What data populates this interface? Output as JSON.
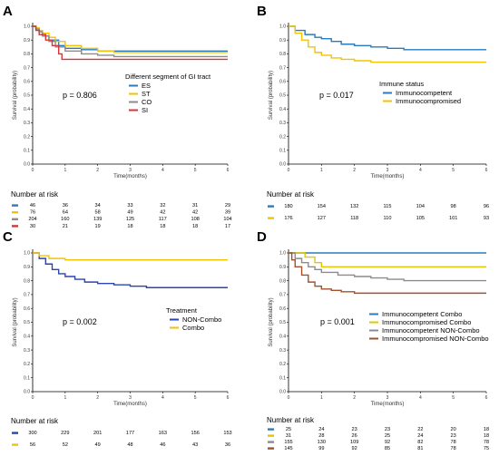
{
  "common": {
    "xlabel": "Time(months)",
    "ylabel": "Survival (probability)",
    "x_ticks": [
      "0",
      "1",
      "2",
      "3",
      "4",
      "5",
      "6"
    ],
    "y_ticks": [
      "0.0",
      "0.1",
      "0.2",
      "0.3",
      "0.4",
      "0.5",
      "0.6",
      "0.7",
      "0.8",
      "0.9",
      "1.0"
    ],
    "risk_title": "Number at risk"
  },
  "chart_data": [
    {
      "type": "line",
      "panel": "A",
      "p_value": "p = 0.806",
      "legend_title": "Different segment of GI tract",
      "xlim": [
        0,
        6
      ],
      "ylim": [
        0,
        1
      ],
      "series": [
        {
          "name": "ES",
          "color": "#2b7bba",
          "points": [
            [
              0,
              1
            ],
            [
              0.1,
              0.98
            ],
            [
              0.2,
              0.96
            ],
            [
              0.3,
              0.93
            ],
            [
              0.5,
              0.9
            ],
            [
              0.8,
              0.86
            ],
            [
              1,
              0.84
            ],
            [
              1.5,
              0.83
            ],
            [
              2,
              0.82
            ],
            [
              6,
              0.82
            ]
          ],
          "at_risk": [
            46,
            36,
            34,
            33,
            32,
            31,
            29
          ]
        },
        {
          "name": "ST",
          "color": "#f2c300",
          "points": [
            [
              0,
              1
            ],
            [
              0.1,
              0.99
            ],
            [
              0.2,
              0.97
            ],
            [
              0.3,
              0.95
            ],
            [
              0.5,
              0.92
            ],
            [
              0.7,
              0.89
            ],
            [
              1,
              0.86
            ],
            [
              1.5,
              0.84
            ],
            [
              2,
              0.82
            ],
            [
              2.5,
              0.81
            ],
            [
              6,
              0.81
            ]
          ],
          "at_risk": [
            76,
            64,
            58,
            49,
            42,
            42,
            39
          ]
        },
        {
          "name": "CO",
          "color": "#8c8c8c",
          "points": [
            [
              0,
              1
            ],
            [
              0.1,
              0.98
            ],
            [
              0.2,
              0.96
            ],
            [
              0.3,
              0.93
            ],
            [
              0.5,
              0.89
            ],
            [
              0.7,
              0.85
            ],
            [
              1,
              0.82
            ],
            [
              1.5,
              0.8
            ],
            [
              2,
              0.79
            ],
            [
              2.5,
              0.78
            ],
            [
              6,
              0.78
            ]
          ],
          "at_risk": [
            204,
            160,
            139,
            125,
            117,
            108,
            104
          ]
        },
        {
          "name": "SI",
          "color": "#d93535",
          "points": [
            [
              0,
              1
            ],
            [
              0.1,
              0.97
            ],
            [
              0.2,
              0.94
            ],
            [
              0.4,
              0.9
            ],
            [
              0.6,
              0.86
            ],
            [
              0.8,
              0.8
            ],
            [
              0.9,
              0.76
            ],
            [
              6,
              0.76
            ]
          ],
          "at_risk": [
            30,
            21,
            19,
            18,
            18,
            18,
            17
          ]
        }
      ]
    },
    {
      "type": "line",
      "panel": "B",
      "p_value": "p = 0.017",
      "legend_title": "Immune status",
      "xlim": [
        0,
        6
      ],
      "ylim": [
        0,
        1
      ],
      "series": [
        {
          "name": "Immunocompetent",
          "color": "#2b7bba",
          "points": [
            [
              0,
              1
            ],
            [
              0.2,
              0.97
            ],
            [
              0.5,
              0.94
            ],
            [
              0.8,
              0.92
            ],
            [
              1,
              0.91
            ],
            [
              1.3,
              0.89
            ],
            [
              1.6,
              0.87
            ],
            [
              2,
              0.86
            ],
            [
              2.5,
              0.85
            ],
            [
              3,
              0.84
            ],
            [
              3.5,
              0.83
            ],
            [
              6,
              0.83
            ]
          ],
          "at_risk": [
            180,
            154,
            132,
            115,
            104,
            98,
            96
          ]
        },
        {
          "name": "Immunocompromised",
          "color": "#f2c300",
          "points": [
            [
              0,
              1
            ],
            [
              0.2,
              0.95
            ],
            [
              0.4,
              0.9
            ],
            [
              0.6,
              0.85
            ],
            [
              0.8,
              0.81
            ],
            [
              1,
              0.79
            ],
            [
              1.3,
              0.77
            ],
            [
              1.6,
              0.76
            ],
            [
              2,
              0.75
            ],
            [
              2.5,
              0.74
            ],
            [
              6,
              0.74
            ]
          ],
          "at_risk": [
            176,
            127,
            118,
            110,
            105,
            101,
            93
          ]
        }
      ]
    },
    {
      "type": "line",
      "panel": "C",
      "p_value": "p = 0.002",
      "legend_title": "Treatment",
      "xlim": [
        0,
        6
      ],
      "ylim": [
        0,
        1
      ],
      "series": [
        {
          "name": "NON-Combo",
          "color": "#2a45b0",
          "points": [
            [
              0,
              1
            ],
            [
              0.2,
              0.96
            ],
            [
              0.4,
              0.92
            ],
            [
              0.6,
              0.88
            ],
            [
              0.8,
              0.85
            ],
            [
              1,
              0.83
            ],
            [
              1.3,
              0.81
            ],
            [
              1.6,
              0.79
            ],
            [
              2,
              0.78
            ],
            [
              2.5,
              0.77
            ],
            [
              3,
              0.76
            ],
            [
              3.5,
              0.75
            ],
            [
              6,
              0.75
            ]
          ],
          "at_risk": [
            300,
            229,
            201,
            177,
            163,
            156,
            153
          ]
        },
        {
          "name": "Combo",
          "color": "#f2c300",
          "points": [
            [
              0,
              1
            ],
            [
              0.2,
              0.98
            ],
            [
              0.5,
              0.96
            ],
            [
              1,
              0.95
            ],
            [
              6,
              0.95
            ]
          ],
          "at_risk": [
            56,
            52,
            49,
            48,
            46,
            43,
            36
          ]
        }
      ]
    },
    {
      "type": "line",
      "panel": "D",
      "p_value": "p = 0.001",
      "legend_title": "",
      "xlim": [
        0,
        6
      ],
      "ylim": [
        0,
        1
      ],
      "series": [
        {
          "name": "Immunocompetent Combo",
          "color": "#2b7bba",
          "points": [
            [
              0,
              1
            ],
            [
              6,
              1
            ]
          ],
          "at_risk": [
            25,
            24,
            23,
            23,
            22,
            20,
            18
          ]
        },
        {
          "name": "Immunocompromised Combo",
          "color": "#e0c800",
          "points": [
            [
              0,
              1
            ],
            [
              0.5,
              0.97
            ],
            [
              0.8,
              0.93
            ],
            [
              1,
              0.9
            ],
            [
              6,
              0.9
            ]
          ],
          "at_risk": [
            31,
            28,
            26,
            25,
            24,
            23,
            18
          ]
        },
        {
          "name": "Immunocompetent NON-Combo",
          "color": "#8c8c8c",
          "points": [
            [
              0,
              1
            ],
            [
              0.2,
              0.96
            ],
            [
              0.4,
              0.93
            ],
            [
              0.6,
              0.9
            ],
            [
              0.8,
              0.88
            ],
            [
              1,
              0.86
            ],
            [
              1.5,
              0.84
            ],
            [
              2,
              0.83
            ],
            [
              2.5,
              0.82
            ],
            [
              3,
              0.81
            ],
            [
              3.5,
              0.8
            ],
            [
              6,
              0.8
            ]
          ],
          "at_risk": [
            155,
            130,
            109,
            92,
            82,
            78,
            78
          ]
        },
        {
          "name": "Immunocompromised NON-Combo",
          "color": "#a0522d",
          "points": [
            [
              0,
              1
            ],
            [
              0.1,
              0.95
            ],
            [
              0.2,
              0.9
            ],
            [
              0.4,
              0.84
            ],
            [
              0.6,
              0.79
            ],
            [
              0.8,
              0.76
            ],
            [
              1,
              0.74
            ],
            [
              1.3,
              0.73
            ],
            [
              1.6,
              0.72
            ],
            [
              2,
              0.71
            ],
            [
              6,
              0.71
            ]
          ],
          "at_risk": [
            145,
            99,
            92,
            85,
            81,
            78,
            75
          ]
        }
      ]
    }
  ]
}
